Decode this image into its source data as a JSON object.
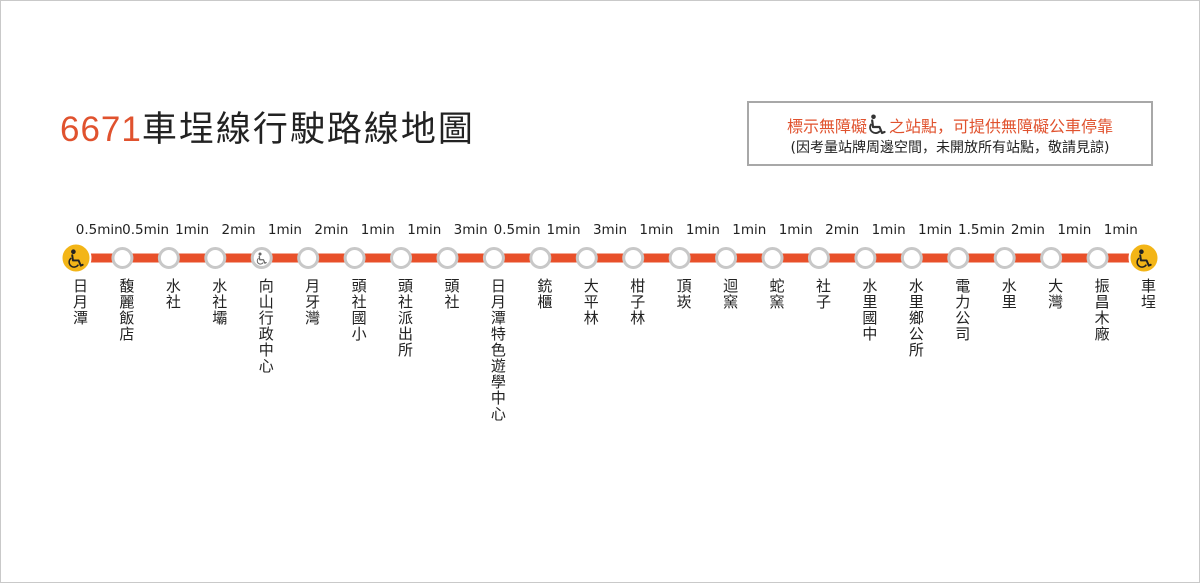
{
  "title": {
    "number": "6671",
    "text": "車埕線行駛路線地圖"
  },
  "notice": {
    "line1_prefix": "標示無障礙",
    "line1_icon": "wheelchair-icon",
    "line1_suffix": "之站點，可提供無障礙公車停靠",
    "line2": "(因考量站牌周邊空間，未開放所有站點，敬請見諒)"
  },
  "colors": {
    "route": "#e8502a",
    "accessible": "#f3b517",
    "station": "#c8c8c8",
    "title_accent": "#e0522e"
  },
  "route": {
    "travel_times": [
      "0.5min",
      "0.5min",
      "1min",
      "2min",
      "1min",
      "2min",
      "1min",
      "1min",
      "3min",
      "0.5min",
      "1min",
      "3min",
      "1min",
      "1min",
      "1min",
      "1min",
      "2min",
      "1min",
      "1min",
      "1.5min",
      "2min",
      "1min",
      "1min"
    ],
    "stations": [
      {
        "name": "日月潭",
        "accessible": "terminal"
      },
      {
        "name": "馥麗飯店",
        "accessible": "no"
      },
      {
        "name": "水社",
        "accessible": "no"
      },
      {
        "name": "水社壩",
        "accessible": "no"
      },
      {
        "name": "向山行政中心",
        "accessible": "yes"
      },
      {
        "name": "月牙灣",
        "accessible": "no"
      },
      {
        "name": "頭社國小",
        "accessible": "no"
      },
      {
        "name": "頭社派出所",
        "accessible": "no"
      },
      {
        "name": "頭社",
        "accessible": "no"
      },
      {
        "name": "日月潭特色遊學中心",
        "accessible": "no"
      },
      {
        "name": "銃櫃",
        "accessible": "no"
      },
      {
        "name": "大平林",
        "accessible": "no"
      },
      {
        "name": "柑子林",
        "accessible": "no"
      },
      {
        "name": "頂崁",
        "accessible": "no"
      },
      {
        "name": "迴窯",
        "accessible": "no"
      },
      {
        "name": "蛇窯",
        "accessible": "no"
      },
      {
        "name": "社子",
        "accessible": "no"
      },
      {
        "name": "水里國中",
        "accessible": "no"
      },
      {
        "name": "水里鄉公所",
        "accessible": "no"
      },
      {
        "name": "電力公司",
        "accessible": "no"
      },
      {
        "name": "水里",
        "accessible": "no"
      },
      {
        "name": "大灣",
        "accessible": "no"
      },
      {
        "name": "振昌木廠",
        "accessible": "no"
      },
      {
        "name": "車埕",
        "accessible": "terminal"
      }
    ]
  }
}
